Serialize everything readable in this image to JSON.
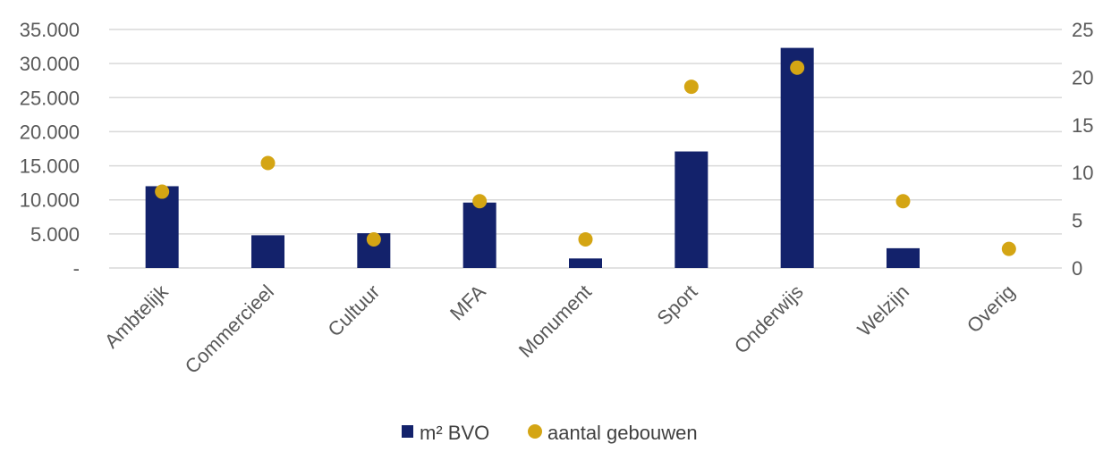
{
  "chart_data": {
    "type": "bar",
    "categories": [
      "Ambtelijk",
      "Commercieel",
      "Cultuur",
      "MFA",
      "Monument",
      "Sport",
      "Onderwijs",
      "Welzijn",
      "Overig"
    ],
    "series": [
      {
        "name": "m² BVO",
        "type": "bar",
        "axis": "left",
        "color": "#13226b",
        "values": [
          12000,
          4800,
          5100,
          9600,
          1400,
          17100,
          32300,
          2900,
          0
        ]
      },
      {
        "name": "aantal gebouwen",
        "type": "scatter",
        "axis": "right",
        "color": "#d4a514",
        "values": [
          8,
          11,
          3,
          7,
          3,
          19,
          21,
          7,
          2
        ]
      }
    ],
    "left_axis": {
      "min": 0,
      "max": 35000,
      "ticks": [
        0,
        5000,
        10000,
        15000,
        20000,
        25000,
        30000,
        35000
      ],
      "tick_labels": [
        "-",
        "5.000",
        "10.000",
        "15.000",
        "20.000",
        "25.000",
        "30.000",
        "35.000"
      ]
    },
    "right_axis": {
      "min": 0,
      "max": 25,
      "ticks": [
        0,
        5,
        10,
        15,
        20,
        25
      ],
      "tick_labels": [
        "0",
        "5",
        "10",
        "15",
        "20",
        "25"
      ]
    },
    "grid": true,
    "legend_position": "bottom"
  }
}
